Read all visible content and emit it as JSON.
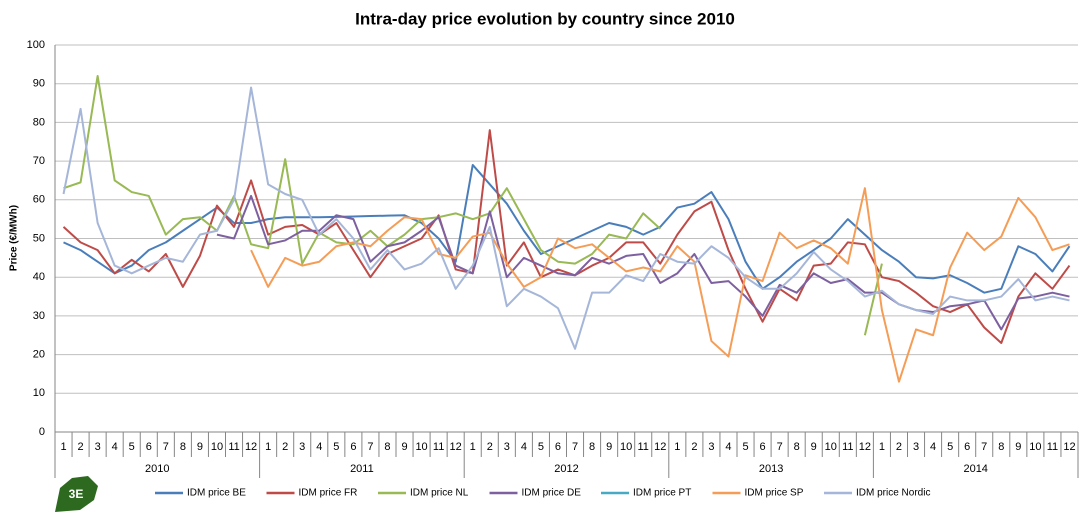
{
  "logo": "3E",
  "chart_data": {
    "type": "line",
    "title": "Intra-day price evolution by country since 2010",
    "y_label": "Price (€/MWh)",
    "categories": [
      "1",
      "2",
      "3",
      "4",
      "5",
      "6",
      "7",
      "8",
      "9",
      "10",
      "11",
      "12",
      "1",
      "2",
      "3",
      "4",
      "5",
      "6",
      "7",
      "8",
      "9",
      "10",
      "11",
      "12",
      "1",
      "2",
      "3",
      "4",
      "5",
      "6",
      "7",
      "8",
      "9",
      "10",
      "11",
      "12",
      "1",
      "2",
      "3",
      "4",
      "5",
      "6",
      "7",
      "8",
      "9",
      "10",
      "11",
      "12",
      "1",
      "2",
      "3",
      "4",
      "5",
      "6",
      "7",
      "8",
      "9",
      "10",
      "11",
      "12"
    ],
    "years": [
      "2010",
      "2011",
      "2012",
      "2013",
      "2014"
    ],
    "ylim": [
      0,
      100
    ],
    "yticks": [
      0,
      10,
      20,
      30,
      40,
      50,
      60,
      70,
      80,
      90,
      100
    ],
    "grid": true,
    "legend": "bottom",
    "series": [
      {
        "name": "IDM price BE",
        "color": "#4a7ebb",
        "values": [
          49,
          47,
          44,
          41,
          43,
          47,
          49,
          52,
          55,
          58,
          54,
          54,
          55,
          55.5,
          55.5,
          55.5,
          55.6,
          55.7,
          55.8,
          55.9,
          56,
          54,
          50,
          44,
          69,
          64,
          59,
          52,
          46,
          48,
          50,
          52,
          54,
          53,
          51,
          53,
          58,
          59,
          62,
          55,
          44,
          37,
          40,
          44,
          47,
          50,
          55,
          51,
          47,
          44,
          40,
          39.7,
          40.5,
          38.5,
          36,
          37,
          48,
          46,
          41.5,
          48
        ]
      },
      {
        "name": "IDM price FR",
        "color": "#be4b48",
        "values": [
          53,
          49,
          47,
          41,
          44.5,
          41.5,
          46,
          37.5,
          45.5,
          58.5,
          53,
          65,
          51,
          53,
          53.5,
          51,
          54,
          47,
          40,
          46,
          48,
          50,
          56,
          42,
          41,
          78,
          43,
          49,
          40,
          42,
          40.5,
          43,
          45,
          49,
          49,
          43.5,
          51,
          57,
          59.5,
          47,
          37,
          28.5,
          37,
          34,
          43,
          43.5,
          49,
          48.5,
          40,
          39,
          36,
          32.5,
          31,
          33,
          27,
          23,
          35,
          41,
          37,
          43
        ]
      },
      {
        "name": "IDM price NL",
        "color": "#98b954",
        "values": [
          63,
          64.5,
          92,
          65,
          62,
          61,
          51,
          55,
          55.5,
          52,
          61,
          48.5,
          47.5,
          70.5,
          43.5,
          51.5,
          49,
          48.5,
          52,
          48,
          51,
          55,
          55.5,
          56.5,
          55,
          56.5,
          63,
          55,
          47,
          44,
          43.5,
          46,
          51,
          50,
          56.5,
          52.5,
          null,
          null,
          null,
          null,
          null,
          null,
          null,
          null,
          null,
          null,
          null,
          25,
          43.5,
          null,
          null,
          null,
          null,
          null,
          null,
          null,
          null,
          null,
          null,
          null
        ]
      },
      {
        "name": "IDM price DE",
        "color": "#7d60a0",
        "values": [
          null,
          null,
          null,
          null,
          null,
          null,
          null,
          null,
          null,
          51,
          50,
          61,
          48.5,
          49.5,
          52,
          52,
          56,
          55,
          44,
          48,
          49,
          52,
          55.5,
          43,
          41,
          57,
          40,
          45,
          43,
          41,
          40.5,
          45,
          43.5,
          45.5,
          46,
          38.5,
          41,
          46,
          38.5,
          39,
          35,
          30,
          38,
          36,
          41,
          38.5,
          39.5,
          36,
          36,
          33,
          31.5,
          31,
          32.5,
          33,
          34,
          26.5,
          34.5,
          35,
          36,
          35
        ]
      },
      {
        "name": "IDM price PT",
        "color": "#46aac5",
        "values": [
          null,
          null,
          null,
          null,
          null,
          null,
          null,
          null,
          null,
          null,
          null,
          null,
          null,
          null,
          null,
          null,
          null,
          null,
          null,
          null,
          null,
          null,
          null,
          null,
          null,
          null,
          null,
          null,
          null,
          null,
          null,
          null,
          null,
          null,
          null,
          null,
          null,
          null,
          null,
          null,
          null,
          null,
          null,
          null,
          null,
          null,
          null,
          null,
          null,
          null,
          null,
          null,
          null,
          null,
          null,
          null,
          null,
          null,
          null,
          null
        ]
      },
      {
        "name": "IDM price SP",
        "color": "#f59d56",
        "values": [
          null,
          null,
          null,
          null,
          null,
          null,
          null,
          null,
          null,
          null,
          null,
          47,
          37.5,
          45,
          43,
          44,
          48,
          49,
          48,
          52,
          55.5,
          55,
          46,
          45,
          50.5,
          51.5,
          43.5,
          37.5,
          40,
          50,
          47.5,
          48.5,
          45,
          41.5,
          42.5,
          41.5,
          48,
          44,
          23.5,
          19.5,
          40.5,
          39,
          51.5,
          47.5,
          49.5,
          47.5,
          43.5,
          63,
          31.5,
          13,
          26.5,
          25,
          42.5,
          51.5,
          47,
          50.5,
          60.5,
          55.5,
          47,
          48.5
        ]
      },
      {
        "name": "IDM price Nordic",
        "color": "#a5b6d9",
        "values": [
          61.5,
          83.5,
          54,
          43,
          41,
          43,
          45,
          44,
          51,
          52,
          60,
          89,
          64,
          61.5,
          60,
          51,
          55,
          50,
          42,
          47,
          42,
          43.5,
          47.5,
          37,
          43,
          53,
          32.5,
          37,
          35,
          32,
          21.5,
          36,
          36,
          40.5,
          39,
          46,
          44,
          43.5,
          48,
          45,
          40,
          37,
          37,
          41,
          46.5,
          42,
          39,
          35,
          36.5,
          33,
          31.5,
          30.5,
          35,
          34,
          34,
          35,
          39.5,
          34,
          35,
          34
        ]
      }
    ]
  }
}
